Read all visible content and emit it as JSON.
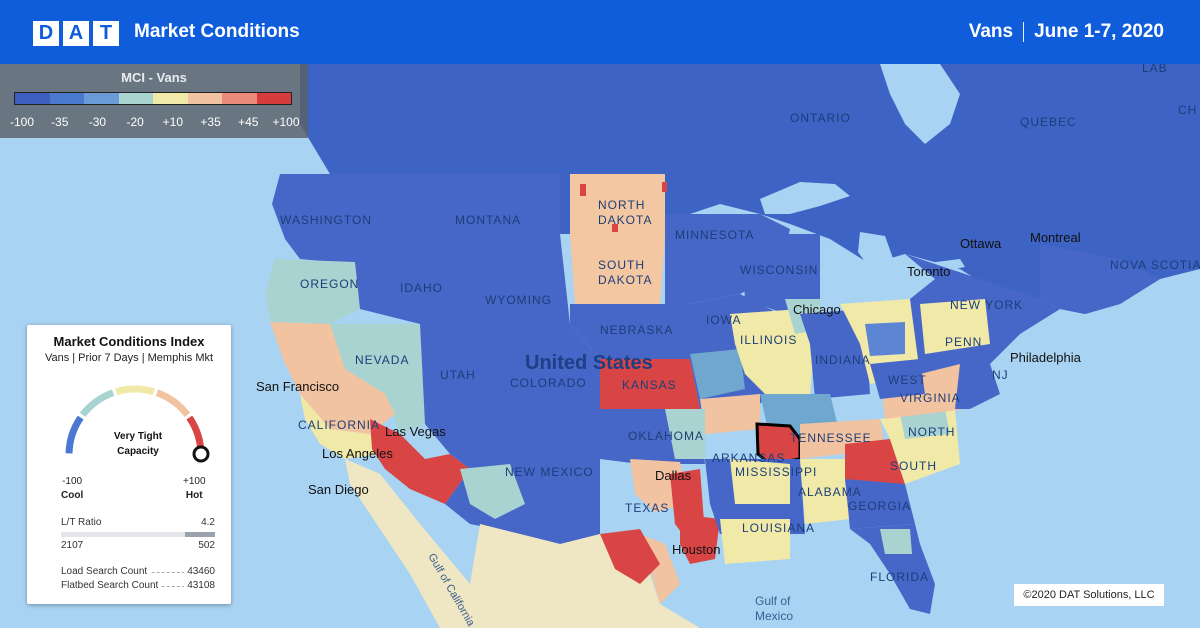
{
  "header": {
    "logo_letters": [
      "D",
      "A",
      "T"
    ],
    "title": "Market Conditions",
    "equipment": "Vans",
    "date_range": "June 1-7, 2020"
  },
  "legend": {
    "title": "MCI - Vans",
    "ticks": [
      "-100",
      "-35",
      "-30",
      "-20",
      "+10",
      "+35",
      "+45",
      "+100"
    ],
    "colors": [
      "#3d5fbf",
      "#4a7ad0",
      "#6a9bd6",
      "#a8d3d1",
      "#f1e9a8",
      "#f2c3a0",
      "#e98a7a",
      "#d63c3c"
    ]
  },
  "card": {
    "title": "Market Conditions Index",
    "subtitle": "Vans | Prior 7 Days | Memphis Mkt",
    "gauge_status_line1": "Very Tight",
    "gauge_status_line2": "Capacity",
    "gauge_level": 1.0,
    "min_value": "-100",
    "min_label": "Cool",
    "max_value": "+100",
    "max_label": "Hot",
    "lt_ratio_label": "L/T Ratio",
    "lt_ratio_value": "4.2",
    "loads": "2107",
    "trucks": "502",
    "load_search_label": "Load Search Count",
    "load_search_value": "43460",
    "flatbed_search_label": "Flatbed Search Count",
    "flatbed_search_value": "43108"
  },
  "map": {
    "colors": {
      "water": "#a9d3f2",
      "canada": "#3d63c4",
      "cool": "#4667c8",
      "cool_mid": "#5c85d4",
      "neutral": "#f1e9a8",
      "teal": "#a8d3d1",
      "warm": "#f2c3a0",
      "hot": "#d94545",
      "mexico": "#efe7c3"
    },
    "labels": {
      "washington": "WASHINGTON",
      "oregon": "OREGON",
      "idaho": "IDAHO",
      "montana": "MONTANA",
      "wyoming": "WYOMING",
      "nevada": "NEVADA",
      "utah": "UTAH",
      "colorado": "COLORADO",
      "california": "CALIFORNIA",
      "north_dakota_1": "NORTH",
      "north_dakota_2": "DAKOTA",
      "south_dakota_1": "SOUTH",
      "south_dakota_2": "DAKOTA",
      "nebraska": "NEBRASKA",
      "kansas": "KANSAS",
      "oklahoma": "OKLAHOMA",
      "new_mexico": "NEW MEXICO",
      "texas": "TEXAS",
      "minnesota": "MINNESOTA",
      "iowa": "IOWA",
      "wisconsin": "WISCONSIN",
      "illinois": "ILLINOIS",
      "indiana": "INDIANA",
      "arkansas": "ARKANSAS",
      "tennessee": "TENNESSEE",
      "mississippi": "MISSISSIPPI",
      "alabama": "ALABAMA",
      "georgia": "GEORGIA",
      "louisiana": "LOUISIANA",
      "florida": "FLORIDA",
      "west_virginia": "WEST",
      "virginia": "VIRGINIA",
      "north_carolina": "NORTH",
      "south_carolina": "SOUTH",
      "new_york": "NEW YORK",
      "pennsylvania": "PENN",
      "new_jersey": "NJ",
      "ontario": "ONTARIO",
      "quebec": "QUEBEC",
      "nova_scotia": "NOVA SCOTIA",
      "united_states": "United States",
      "gulf_of_california": "Gulf of California",
      "gulf_of_mexico_1": "Gulf of",
      "gulf_of_mexico_2": "Mexico",
      "lac": "LAB",
      "ch": "CH",
      "cities": {
        "san_francisco": "San Francisco",
        "los_angeles": "Los Angeles",
        "san_diego": "San Diego",
        "las_vegas": "Las Vegas",
        "dallas": "Dallas",
        "houston": "Houston",
        "chicago": "Chicago",
        "toronto": "Toronto",
        "ottawa": "Ottawa",
        "montreal": "Montreal",
        "philadelphia": "Philadelphia"
      }
    }
  },
  "copyright": "©2020 DAT Solutions, LLC"
}
